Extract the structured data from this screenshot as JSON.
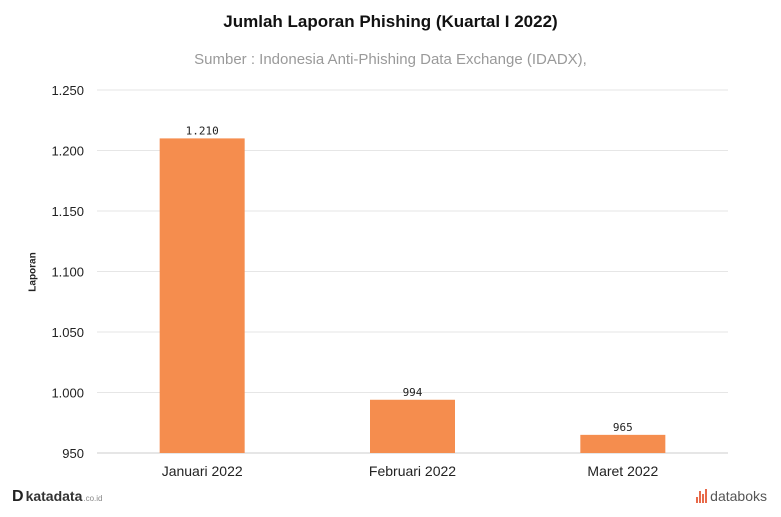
{
  "chart_data": {
    "type": "bar",
    "title": "Jumlah Laporan Phishing (Kuartal I 2022)",
    "subtitle": "Sumber : Indonesia Anti-Phishing Data Exchange (IDADX),",
    "ylabel": "Laporan",
    "categories": [
      "Januari 2022",
      "Februari 2022",
      "Maret 2022"
    ],
    "values": [
      1210,
      994,
      965
    ],
    "value_labels": [
      "1.210",
      "994",
      "965"
    ],
    "ylim": [
      950,
      1250
    ],
    "yticks": [
      950,
      1000,
      1050,
      1100,
      1150,
      1200,
      1250
    ],
    "ytick_labels": [
      "950",
      "1.000",
      "1.050",
      "1.100",
      "1.150",
      "1.200",
      "1.250"
    ],
    "grid": true,
    "bar_color": "#f58d4e"
  },
  "branding": {
    "left_mark": "D",
    "left_name": "katadata",
    "left_suffix": ".co.id",
    "right_name": "databoks",
    "right_color": "#e86a4a"
  }
}
